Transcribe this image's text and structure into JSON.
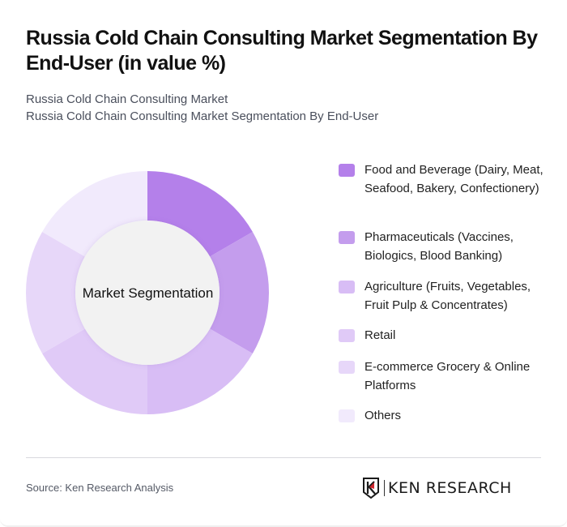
{
  "header": {
    "title": "Russia Cold Chain Consulting Market Segmentation By End-User (in value %)",
    "subtitle_1": "Russia Cold Chain Consulting Market",
    "subtitle_2": "Russia Cold Chain Consulting Market Segmentation By End-User"
  },
  "chart": {
    "center_label": "Market Segmentation"
  },
  "legend": {
    "items": [
      {
        "label": "Food and Beverage (Dairy, Meat, Seafood, Bakery, Confectionery)",
        "color": "#b480ea"
      },
      {
        "label": "Pharmaceuticals (Vaccines, Biologics, Blood Banking)",
        "color": "#c49ded"
      },
      {
        "label": "Agriculture (Fruits, Vegetables, Fruit Pulp & Concentrates)",
        "color": "#d8bdf5"
      },
      {
        "label": "Retail",
        "color": "#e0caf7"
      },
      {
        "label": "E-commerce Grocery & Online Platforms",
        "color": "#e7d7f9"
      },
      {
        "label": "Others",
        "color": "#f1eafc"
      }
    ]
  },
  "footer": {
    "source": "Source: Ken Research Analysis",
    "logo_text": "KEN RESEARCH"
  },
  "chart_data": {
    "type": "pie",
    "subtype": "donut",
    "title": "Russia Cold Chain Consulting Market Segmentation By End-User (in value %)",
    "center_label": "Market Segmentation",
    "categories": [
      "Food and Beverage (Dairy, Meat, Seafood, Bakery, Confectionery)",
      "Pharmaceuticals (Vaccines, Biologics, Blood Banking)",
      "Agriculture (Fruits, Vegetables, Fruit Pulp & Concentrates)",
      "Retail",
      "E-commerce Grocery & Online Platforms",
      "Others"
    ],
    "values": [
      16.67,
      16.67,
      16.67,
      16.67,
      16.67,
      16.67
    ],
    "colors": [
      "#b480ea",
      "#c49ded",
      "#d8bdf5",
      "#e0caf7",
      "#e7d7f9",
      "#f1eafc"
    ],
    "legend_position": "right",
    "data_labels": false
  }
}
